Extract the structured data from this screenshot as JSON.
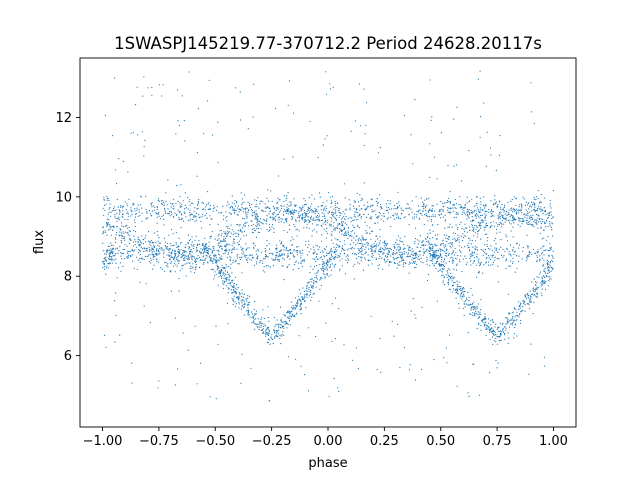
{
  "chart_data": {
    "type": "scatter",
    "title": "1SWASPJ145219.77-370712.2 Period 24628.20117s",
    "xlabel": "phase",
    "ylabel": "flux",
    "xlim": [
      -1.1,
      1.1
    ],
    "ylim": [
      4.2,
      13.5
    ],
    "xticks": [
      -1.0,
      -0.75,
      -0.5,
      -0.25,
      0.0,
      0.25,
      0.5,
      0.75,
      1.0
    ],
    "xtick_labels": [
      "−1.00",
      "−0.75",
      "−0.50",
      "−0.25",
      "0.00",
      "0.25",
      "0.50",
      "0.75",
      "1.00"
    ],
    "yticks": [
      6,
      8,
      10,
      12
    ],
    "ytick_labels": [
      "6",
      "8",
      "10",
      "12"
    ],
    "grid": false,
    "legend": "none",
    "marker_color": "#1f77b4",
    "phase_range": [
      -1.0,
      1.0
    ],
    "branches": [
      {
        "shape": "flat",
        "level": 9.65,
        "spread": 0.18
      },
      {
        "shape": "flat",
        "level": 8.55,
        "spread": 0.18
      },
      {
        "shape": "wave",
        "mean": 9.05,
        "amplitude": 0.45,
        "spread": 0.18
      },
      {
        "shape": "eclipse",
        "center": -0.25,
        "baseline": 8.75,
        "depth": 6.45,
        "half_width": 0.3,
        "spread": 0.15
      },
      {
        "shape": "eclipse",
        "center": 0.75,
        "baseline": 8.75,
        "depth": 6.45,
        "half_width": 0.3,
        "spread": 0.15
      }
    ],
    "outlier_range": [
      4.8,
      13.2
    ]
  }
}
